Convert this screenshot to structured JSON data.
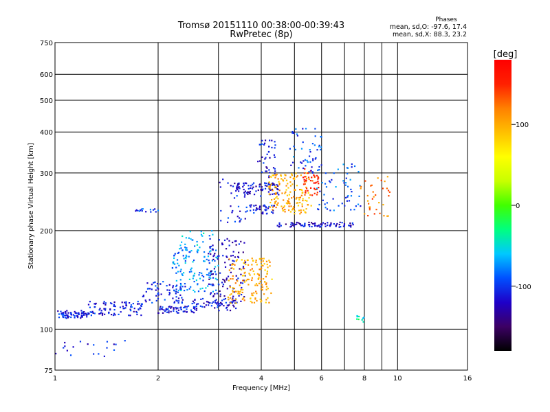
{
  "chart_data": {
    "type": "scatter",
    "title": "Tromsø 20151110 00:38:00-00:39:43",
    "subtitle": "RwPretec (8p)",
    "xlabel": "Frequency [MHz]",
    "ylabel": "Stationary phase Virtual Height [km]",
    "x_scale": "log",
    "y_scale": "log",
    "xlim": [
      1,
      16
    ],
    "ylim": [
      75,
      750
    ],
    "x_ticks": [
      1,
      2,
      4,
      6,
      8,
      10,
      16
    ],
    "x_tick_labels": [
      "1",
      "2",
      "4",
      "6",
      "8",
      "10",
      "16"
    ],
    "x_grid": [
      1,
      2,
      3,
      4,
      5,
      6,
      7,
      8,
      9,
      10,
      16
    ],
    "y_ticks": [
      75,
      100,
      200,
      300,
      400,
      500,
      600,
      750
    ],
    "y_tick_labels": [
      "75",
      "100",
      "200",
      "300",
      "400",
      "500",
      "600",
      "750"
    ],
    "y_grid": [
      100,
      200,
      300,
      400,
      500,
      600
    ],
    "grid": true,
    "phase_info": {
      "title": "Phases",
      "line_o": "mean, sd,O: -97.6, 17.4",
      "line_x": "mean, sd,X:  88.3, 23.2"
    },
    "colorbar": {
      "label": "[deg]",
      "range": [
        -180,
        180
      ],
      "ticks": [
        100,
        0,
        -100
      ],
      "tick_labels": [
        "100",
        "0",
        "-100"
      ],
      "colors": [
        "#000000",
        "#3c0064",
        "#1e00c8",
        "#0050ff",
        "#00c8ff",
        "#00ff80",
        "#40ff00",
        "#c8ff00",
        "#ffff00",
        "#ffc000",
        "#ff8000",
        "#ff2000",
        "#ff0000"
      ]
    },
    "clusters": [
      {
        "f": [
          1.0,
          1.25
        ],
        "h": [
          108,
          114
        ],
        "phase": -110,
        "n": 70
      },
      {
        "f": [
          1.25,
          1.8
        ],
        "h": [
          110,
          122
        ],
        "phase": -110,
        "n": 90
      },
      {
        "f": [
          1.8,
          2.4
        ],
        "h": [
          120,
          140
        ],
        "phase": -108,
        "n": 70
      },
      {
        "f": [
          2.0,
          2.6
        ],
        "h": [
          112,
          118
        ],
        "phase": -110,
        "n": 55
      },
      {
        "f": [
          2.5,
          3.4
        ],
        "h": [
          114,
          124
        ],
        "phase": -112,
        "n": 60
      },
      {
        "f": [
          2.2,
          3.0
        ],
        "h": [
          130,
          180
        ],
        "phase": -75,
        "n": 130
      },
      {
        "f": [
          2.8,
          3.6
        ],
        "h": [
          120,
          190
        ],
        "phase": -120,
        "n": 120
      },
      {
        "f": [
          3.2,
          4.3
        ],
        "h": [
          120,
          165
        ],
        "phase": 100,
        "n": 150
      },
      {
        "f": [
          3.0,
          3.6
        ],
        "h": [
          210,
          290
        ],
        "phase": -110,
        "n": 30
      },
      {
        "f": [
          3.3,
          4.5
        ],
        "h": [
          255,
          280
        ],
        "phase": -118,
        "n": 90
      },
      {
        "f": [
          3.6,
          4.4
        ],
        "h": [
          225,
          240
        ],
        "phase": -110,
        "n": 40
      },
      {
        "f": [
          3.9,
          4.4
        ],
        "h": [
          290,
          380
        ],
        "phase": -110,
        "n": 40
      },
      {
        "f": [
          4.2,
          5.6
        ],
        "h": [
          225,
          300
        ],
        "phase": 100,
        "n": 150
      },
      {
        "f": [
          5.3,
          5.9
        ],
        "h": [
          255,
          310
        ],
        "phase": 150,
        "n": 45
      },
      {
        "f": [
          4.8,
          6.0
        ],
        "h": [
          300,
          410
        ],
        "phase": -95,
        "n": 50
      },
      {
        "f": [
          4.4,
          7.5
        ],
        "h": [
          205,
          212
        ],
        "phase": -118,
        "n": 80
      },
      {
        "f": [
          5.8,
          7.8
        ],
        "h": [
          230,
          320
        ],
        "phase": -90,
        "n": 60
      },
      {
        "f": [
          7.8,
          9.5
        ],
        "h": [
          220,
          300
        ],
        "phase": 120,
        "n": 35
      },
      {
        "f": [
          1.7,
          2.0
        ],
        "h": [
          228,
          235
        ],
        "phase": -100,
        "n": 15
      },
      {
        "f": [
          1.0,
          1.6
        ],
        "h": [
          82,
          93
        ],
        "phase": -110,
        "n": 20
      },
      {
        "f": [
          7.6,
          8.0
        ],
        "h": [
          105,
          110
        ],
        "phase": -40,
        "n": 10
      },
      {
        "f": [
          2.3,
          2.9
        ],
        "h": [
          180,
          200
        ],
        "phase": -60,
        "n": 20
      }
    ]
  }
}
